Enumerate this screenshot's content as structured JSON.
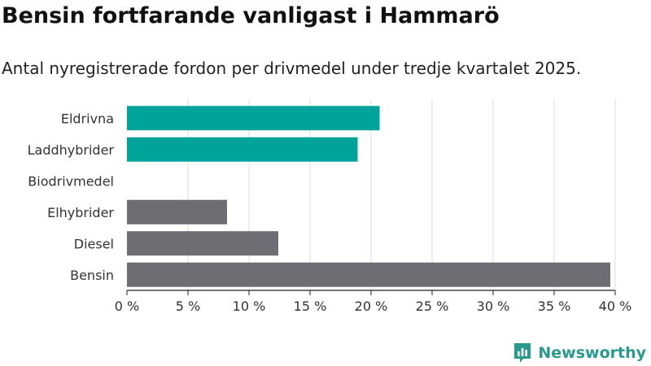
{
  "header": {
    "title": "Bensin fortfarande vanligast i Hammarö",
    "subtitle": "Antal nyregistrerade fordon per drivmedel under tredje kvartalet 2025."
  },
  "brand": {
    "name": "Newsworthy",
    "icon": "newsworthy-logo-icon",
    "color": "#2a9a8e"
  },
  "colors": {
    "highlight": "#00a39a",
    "default": "#6e6d74",
    "grid": "#dddddd"
  },
  "chart_data": {
    "type": "bar",
    "orientation": "horizontal",
    "categories": [
      "Eldrivna",
      "Laddhybrider",
      "Biodrivmedel",
      "Elhybrider",
      "Diesel",
      "Bensin"
    ],
    "values": [
      20.7,
      18.9,
      0,
      8.2,
      12.4,
      39.6
    ],
    "bar_colors": [
      "#00a39a",
      "#00a39a",
      "#6e6d74",
      "#6e6d74",
      "#6e6d74",
      "#6e6d74"
    ],
    "xlim": [
      0,
      40
    ],
    "x_ticks": [
      0,
      5,
      10,
      15,
      20,
      25,
      30,
      35,
      40
    ],
    "x_tick_labels": [
      "0 %",
      "5 %",
      "10 %",
      "15 %",
      "20 %",
      "25 %",
      "30 %",
      "35 %",
      "40 %"
    ],
    "grid": true,
    "legend": "none"
  }
}
